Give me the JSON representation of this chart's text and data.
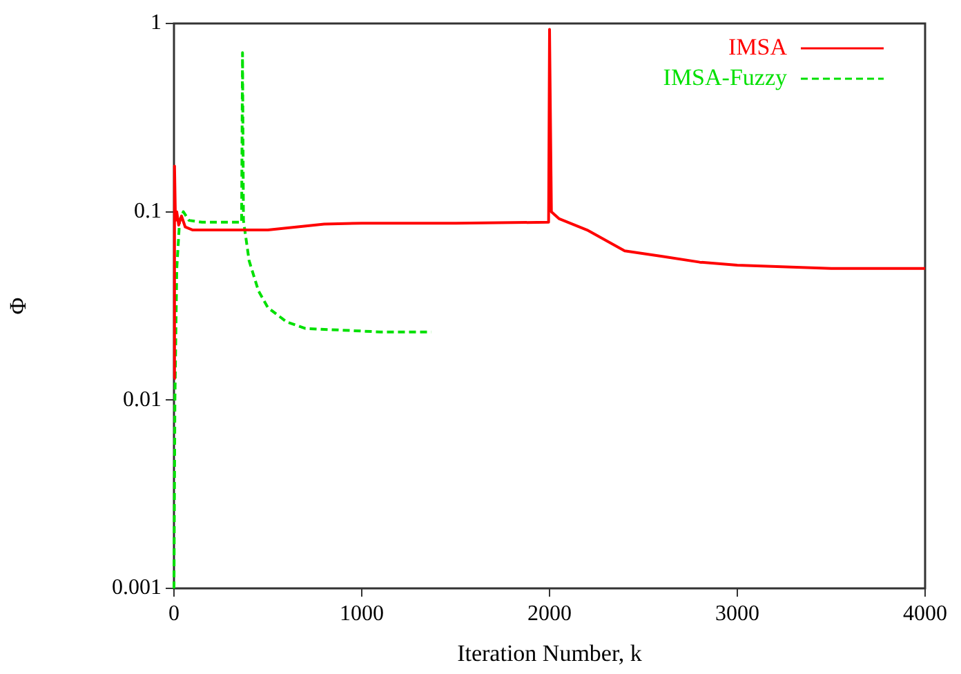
{
  "chart_data": {
    "type": "line",
    "xlabel": "Iteration Number, k",
    "ylabel": "Φ",
    "log": "y",
    "grid": false,
    "legend": "top right",
    "marker": "none",
    "xlim": [
      0,
      4000
    ],
    "xticks": [
      0,
      1000,
      2000,
      3000,
      4000
    ],
    "ylim": [
      0.001,
      1
    ],
    "yticks": [
      0.001,
      0.01,
      0.1,
      1
    ],
    "series": [
      {
        "name": "IMSA",
        "color": "#ff0000",
        "line_style": "solid",
        "x": [
          0,
          3,
          8,
          15,
          25,
          40,
          60,
          100,
          300,
          500,
          650,
          800,
          1000,
          1500,
          1995,
          2000,
          2010,
          2050,
          2200,
          2400,
          2600,
          2800,
          3000,
          3500,
          4000
        ],
        "values": [
          0.013,
          0.175,
          0.09,
          0.1,
          0.085,
          0.095,
          0.083,
          0.08,
          0.08,
          0.08,
          0.083,
          0.086,
          0.087,
          0.087,
          0.088,
          0.93,
          0.1,
          0.092,
          0.08,
          0.062,
          0.058,
          0.054,
          0.052,
          0.05,
          0.05
        ]
      },
      {
        "name": "IMSA-Fuzzy",
        "color": "#00e000",
        "line_style": "dashed",
        "x": [
          0,
          5,
          15,
          30,
          50,
          80,
          150,
          360,
          365,
          370,
          400,
          450,
          500,
          600,
          700,
          900,
          1100,
          1370
        ],
        "values": [
          0.001,
          0.01,
          0.05,
          0.09,
          0.1,
          0.09,
          0.088,
          0.088,
          0.7,
          0.09,
          0.055,
          0.038,
          0.031,
          0.026,
          0.024,
          0.0235,
          0.023,
          0.023
        ]
      }
    ]
  }
}
